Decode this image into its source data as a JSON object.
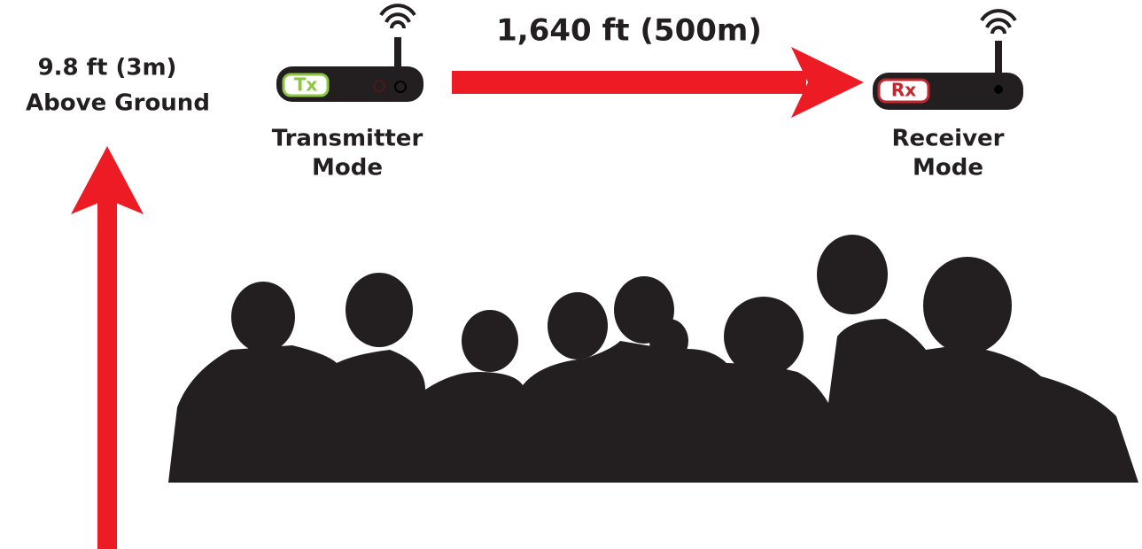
{
  "height_label": [
    "9.8 ft (3m)",
    "Above Ground"
  ],
  "distance_label": "1,640 ft (500m)",
  "transmitter": {
    "badge": "Tx",
    "label": [
      "Transmitter",
      "Mode"
    ]
  },
  "receiver": {
    "badge": "Rx",
    "label": [
      "Receiver",
      "Mode"
    ]
  }
}
